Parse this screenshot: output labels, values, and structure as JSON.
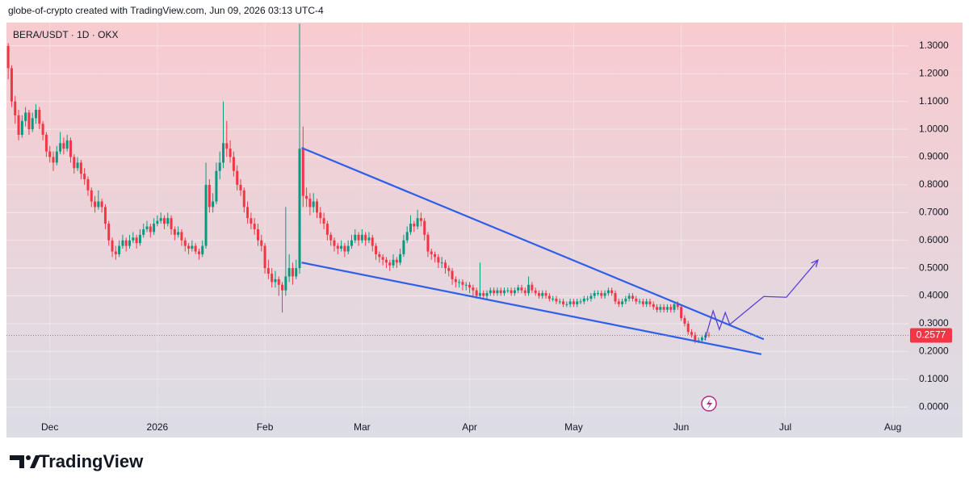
{
  "header": {
    "attribution": "globe-of-crypto created with TradingView.com, Jun 09, 2026 03:13 UTC-4"
  },
  "footer": {
    "brand": "TradingView"
  },
  "chart_data": {
    "type": "candlestick",
    "title": "BERA/USDT · 1D · OKX",
    "up_color": "#089981",
    "down_color": "#f23645",
    "xlim": [
      -12.5,
      247.5
    ],
    "xticks": [
      {
        "value": 0,
        "label": "Dec"
      },
      {
        "value": 31,
        "label": "2026"
      },
      {
        "value": 62,
        "label": "Feb"
      },
      {
        "value": 90,
        "label": "Mar"
      },
      {
        "value": 121,
        "label": "Apr"
      },
      {
        "value": 151,
        "label": "May"
      },
      {
        "value": 182,
        "label": "Jun"
      },
      {
        "value": 212,
        "label": "Jul"
      },
      {
        "value": 243,
        "label": "Aug"
      }
    ],
    "ylim": [
      -0.11,
      1.384
    ],
    "yticks": [
      {
        "value": 0,
        "label": "0.0000"
      },
      {
        "value": 0.1,
        "label": "0.1000"
      },
      {
        "value": 0.2,
        "label": "0.2000"
      },
      {
        "value": 0.3,
        "label": "0.3000"
      },
      {
        "value": 0.4,
        "label": "0.4000"
      },
      {
        "value": 0.5,
        "label": "0.5000"
      },
      {
        "value": 0.6,
        "label": "0.6000"
      },
      {
        "value": 0.7,
        "label": "0.7000"
      },
      {
        "value": 0.8,
        "label": "0.8000"
      },
      {
        "value": 0.9,
        "label": "0.9000"
      },
      {
        "value": 1,
        "label": "1.0000"
      },
      {
        "value": 1.1,
        "label": "1.1000"
      },
      {
        "value": 1.2,
        "label": "1.2000"
      },
      {
        "value": 1.3,
        "label": "1.3000"
      }
    ],
    "grid": true,
    "x": [
      -12,
      -11,
      -10,
      -9,
      -8,
      -7,
      -6,
      -5,
      -4,
      -3,
      -2,
      -1,
      0,
      1,
      2,
      3,
      4,
      5,
      6,
      7,
      8,
      9,
      10,
      11,
      12,
      13,
      14,
      15,
      16,
      17,
      18,
      19,
      20,
      21,
      22,
      23,
      24,
      25,
      26,
      27,
      28,
      29,
      30,
      31,
      32,
      33,
      34,
      35,
      36,
      37,
      38,
      39,
      40,
      41,
      42,
      43,
      44,
      45,
      46,
      47,
      48,
      49,
      50,
      51,
      52,
      53,
      54,
      55,
      56,
      57,
      58,
      59,
      60,
      61,
      62,
      63,
      64,
      65,
      66,
      67,
      68,
      69,
      70,
      71,
      72,
      73,
      74,
      75,
      76,
      77,
      78,
      79,
      80,
      81,
      82,
      83,
      84,
      85,
      86,
      87,
      88,
      89,
      90,
      91,
      92,
      93,
      94,
      95,
      96,
      97,
      98,
      99,
      100,
      101,
      102,
      103,
      104,
      105,
      106,
      107,
      108,
      109,
      110,
      111,
      112,
      113,
      114,
      115,
      116,
      117,
      118,
      119,
      120,
      121,
      122,
      123,
      124,
      125,
      126,
      127,
      128,
      129,
      130,
      131,
      132,
      133,
      134,
      135,
      136,
      137,
      138,
      139,
      140,
      141,
      142,
      143,
      144,
      145,
      146,
      147,
      148,
      149,
      150,
      151,
      152,
      153,
      154,
      155,
      156,
      157,
      158,
      159,
      160,
      161,
      162,
      163,
      164,
      165,
      166,
      167,
      168,
      169,
      170,
      171,
      172,
      173,
      174,
      175,
      176,
      177,
      178,
      179,
      180,
      181,
      182,
      183,
      184,
      185,
      186,
      187,
      188,
      189,
      190
    ],
    "candles": [
      [
        1.3,
        1.31,
        1.18,
        1.22
      ],
      [
        1.22,
        1.23,
        1.08,
        1.1
      ],
      [
        1.1,
        1.12,
        1.02,
        1.05
      ],
      [
        1.05,
        1.07,
        0.96,
        0.98
      ],
      [
        0.98,
        1.05,
        0.97,
        1.03
      ],
      [
        1.03,
        1.08,
        1.01,
        1.06
      ],
      [
        1.06,
        1.07,
        0.98,
        1.0
      ],
      [
        1.0,
        1.06,
        0.99,
        1.04
      ],
      [
        1.04,
        1.09,
        1.02,
        1.07
      ],
      [
        1.07,
        1.08,
        1.0,
        1.02
      ],
      [
        1.02,
        1.03,
        0.96,
        0.98
      ],
      [
        0.98,
        0.99,
        0.9,
        0.92
      ],
      [
        0.92,
        0.94,
        0.88,
        0.9
      ],
      [
        0.9,
        0.92,
        0.85,
        0.88
      ],
      [
        0.88,
        0.94,
        0.87,
        0.92
      ],
      [
        0.92,
        0.99,
        0.91,
        0.95
      ],
      [
        0.95,
        0.97,
        0.91,
        0.93
      ],
      [
        0.93,
        0.98,
        0.92,
        0.96
      ],
      [
        0.96,
        0.97,
        0.88,
        0.9
      ],
      [
        0.9,
        0.91,
        0.84,
        0.86
      ],
      [
        0.86,
        0.9,
        0.85,
        0.88
      ],
      [
        0.88,
        0.89,
        0.82,
        0.84
      ],
      [
        0.84,
        0.86,
        0.8,
        0.82
      ],
      [
        0.82,
        0.83,
        0.76,
        0.78
      ],
      [
        0.78,
        0.79,
        0.72,
        0.74
      ],
      [
        0.74,
        0.76,
        0.7,
        0.72
      ],
      [
        0.72,
        0.78,
        0.71,
        0.74
      ],
      [
        0.74,
        0.75,
        0.7,
        0.72
      ],
      [
        0.72,
        0.73,
        0.64,
        0.66
      ],
      [
        0.66,
        0.67,
        0.58,
        0.6
      ],
      [
        0.6,
        0.61,
        0.54,
        0.56
      ],
      [
        0.56,
        0.58,
        0.53,
        0.55
      ],
      [
        0.55,
        0.6,
        0.54,
        0.58
      ],
      [
        0.58,
        0.62,
        0.57,
        0.6
      ],
      [
        0.6,
        0.61,
        0.56,
        0.58
      ],
      [
        0.58,
        0.62,
        0.57,
        0.6
      ],
      [
        0.6,
        0.63,
        0.59,
        0.61
      ],
      [
        0.61,
        0.62,
        0.57,
        0.59
      ],
      [
        0.59,
        0.64,
        0.58,
        0.62
      ],
      [
        0.62,
        0.66,
        0.61,
        0.64
      ],
      [
        0.64,
        0.67,
        0.63,
        0.65
      ],
      [
        0.65,
        0.66,
        0.61,
        0.63
      ],
      [
        0.63,
        0.68,
        0.62,
        0.66
      ],
      [
        0.66,
        0.69,
        0.65,
        0.67
      ],
      [
        0.67,
        0.7,
        0.66,
        0.68
      ],
      [
        0.68,
        0.69,
        0.64,
        0.66
      ],
      [
        0.66,
        0.7,
        0.65,
        0.68
      ],
      [
        0.68,
        0.69,
        0.62,
        0.64
      ],
      [
        0.64,
        0.65,
        0.6,
        0.62
      ],
      [
        0.62,
        0.65,
        0.61,
        0.63
      ],
      [
        0.63,
        0.64,
        0.58,
        0.6
      ],
      [
        0.6,
        0.61,
        0.56,
        0.58
      ],
      [
        0.58,
        0.59,
        0.55,
        0.57
      ],
      [
        0.57,
        0.6,
        0.56,
        0.58
      ],
      [
        0.58,
        0.59,
        0.55,
        0.56
      ],
      [
        0.56,
        0.57,
        0.53,
        0.55
      ],
      [
        0.55,
        0.6,
        0.54,
        0.58
      ],
      [
        0.58,
        0.88,
        0.57,
        0.8
      ],
      [
        0.8,
        0.82,
        0.7,
        0.72
      ],
      [
        0.72,
        0.77,
        0.7,
        0.74
      ],
      [
        0.74,
        0.88,
        0.73,
        0.85
      ],
      [
        0.85,
        0.92,
        0.82,
        0.88
      ],
      [
        0.88,
        1.1,
        0.86,
        0.95
      ],
      [
        0.95,
        1.03,
        0.9,
        0.93
      ],
      [
        0.93,
        0.96,
        0.88,
        0.9
      ],
      [
        0.9,
        0.92,
        0.83,
        0.85
      ],
      [
        0.85,
        0.87,
        0.78,
        0.8
      ],
      [
        0.8,
        0.82,
        0.76,
        0.78
      ],
      [
        0.78,
        0.79,
        0.7,
        0.72
      ],
      [
        0.72,
        0.74,
        0.66,
        0.68
      ],
      [
        0.68,
        0.7,
        0.64,
        0.66
      ],
      [
        0.66,
        0.68,
        0.62,
        0.64
      ],
      [
        0.64,
        0.66,
        0.58,
        0.6
      ],
      [
        0.6,
        0.62,
        0.56,
        0.58
      ],
      [
        0.58,
        0.59,
        0.48,
        0.5
      ],
      [
        0.5,
        0.53,
        0.46,
        0.48
      ],
      [
        0.48,
        0.5,
        0.43,
        0.45
      ],
      [
        0.45,
        0.49,
        0.43,
        0.46
      ],
      [
        0.46,
        0.47,
        0.4,
        0.44
      ],
      [
        0.44,
        0.45,
        0.34,
        0.42
      ],
      [
        0.42,
        0.72,
        0.4,
        0.47
      ],
      [
        0.47,
        0.55,
        0.45,
        0.5
      ],
      [
        0.5,
        0.52,
        0.44,
        0.47
      ],
      [
        0.47,
        0.53,
        0.46,
        0.5
      ],
      [
        0.5,
        1.38,
        0.48,
        0.93
      ],
      [
        0.93,
        1.01,
        0.72,
        0.76
      ],
      [
        0.76,
        0.79,
        0.72,
        0.75
      ],
      [
        0.75,
        0.77,
        0.69,
        0.72
      ],
      [
        0.72,
        0.77,
        0.7,
        0.74
      ],
      [
        0.74,
        0.75,
        0.68,
        0.7
      ],
      [
        0.7,
        0.72,
        0.66,
        0.68
      ],
      [
        0.68,
        0.7,
        0.64,
        0.66
      ],
      [
        0.66,
        0.67,
        0.6,
        0.62
      ],
      [
        0.62,
        0.63,
        0.58,
        0.6
      ],
      [
        0.6,
        0.61,
        0.56,
        0.58
      ],
      [
        0.58,
        0.59,
        0.55,
        0.57
      ],
      [
        0.57,
        0.6,
        0.56,
        0.58
      ],
      [
        0.58,
        0.59,
        0.54,
        0.56
      ],
      [
        0.56,
        0.6,
        0.55,
        0.58
      ],
      [
        0.58,
        0.62,
        0.57,
        0.6
      ],
      [
        0.6,
        0.64,
        0.59,
        0.62
      ],
      [
        0.62,
        0.63,
        0.58,
        0.6
      ],
      [
        0.6,
        0.64,
        0.59,
        0.62
      ],
      [
        0.62,
        0.63,
        0.58,
        0.6
      ],
      [
        0.6,
        0.63,
        0.59,
        0.61
      ],
      [
        0.61,
        0.62,
        0.56,
        0.58
      ],
      [
        0.58,
        0.59,
        0.53,
        0.55
      ],
      [
        0.55,
        0.56,
        0.52,
        0.54
      ],
      [
        0.54,
        0.55,
        0.51,
        0.53
      ],
      [
        0.53,
        0.54,
        0.5,
        0.52
      ],
      [
        0.52,
        0.53,
        0.49,
        0.51
      ],
      [
        0.51,
        0.55,
        0.5,
        0.53
      ],
      [
        0.53,
        0.54,
        0.5,
        0.52
      ],
      [
        0.52,
        0.57,
        0.51,
        0.55
      ],
      [
        0.55,
        0.62,
        0.54,
        0.6
      ],
      [
        0.6,
        0.65,
        0.59,
        0.63
      ],
      [
        0.63,
        0.69,
        0.62,
        0.66
      ],
      [
        0.66,
        0.67,
        0.63,
        0.65
      ],
      [
        0.65,
        0.71,
        0.64,
        0.68
      ],
      [
        0.68,
        0.7,
        0.65,
        0.67
      ],
      [
        0.67,
        0.68,
        0.6,
        0.62
      ],
      [
        0.62,
        0.63,
        0.54,
        0.56
      ],
      [
        0.56,
        0.57,
        0.53,
        0.55
      ],
      [
        0.55,
        0.56,
        0.52,
        0.54
      ],
      [
        0.54,
        0.55,
        0.5,
        0.52
      ],
      [
        0.52,
        0.54,
        0.5,
        0.52
      ],
      [
        0.52,
        0.53,
        0.48,
        0.5
      ],
      [
        0.5,
        0.51,
        0.47,
        0.49
      ],
      [
        0.49,
        0.5,
        0.44,
        0.46
      ],
      [
        0.46,
        0.47,
        0.43,
        0.45
      ],
      [
        0.45,
        0.46,
        0.43,
        0.45
      ],
      [
        0.45,
        0.46,
        0.42,
        0.44
      ],
      [
        0.44,
        0.45,
        0.42,
        0.44
      ],
      [
        0.44,
        0.45,
        0.41,
        0.43
      ],
      [
        0.43,
        0.44,
        0.4,
        0.42
      ],
      [
        0.42,
        0.43,
        0.39,
        0.4
      ],
      [
        0.4,
        0.52,
        0.39,
        0.41
      ],
      [
        0.41,
        0.42,
        0.39,
        0.4
      ],
      [
        0.4,
        0.42,
        0.39,
        0.41
      ],
      [
        0.41,
        0.43,
        0.4,
        0.42
      ],
      [
        0.42,
        0.43,
        0.4,
        0.41
      ],
      [
        0.41,
        0.43,
        0.4,
        0.42
      ],
      [
        0.42,
        0.43,
        0.4,
        0.41
      ],
      [
        0.41,
        0.43,
        0.4,
        0.42
      ],
      [
        0.42,
        0.43,
        0.41,
        0.42
      ],
      [
        0.42,
        0.43,
        0.4,
        0.41
      ],
      [
        0.41,
        0.43,
        0.4,
        0.42
      ],
      [
        0.42,
        0.44,
        0.41,
        0.43
      ],
      [
        0.43,
        0.44,
        0.41,
        0.42
      ],
      [
        0.42,
        0.43,
        0.4,
        0.41
      ],
      [
        0.41,
        0.47,
        0.4,
        0.44
      ],
      [
        0.44,
        0.45,
        0.41,
        0.42
      ],
      [
        0.42,
        0.43,
        0.4,
        0.41
      ],
      [
        0.41,
        0.42,
        0.39,
        0.4
      ],
      [
        0.4,
        0.42,
        0.39,
        0.41
      ],
      [
        0.41,
        0.42,
        0.39,
        0.4
      ],
      [
        0.4,
        0.41,
        0.38,
        0.39
      ],
      [
        0.39,
        0.4,
        0.38,
        0.39
      ],
      [
        0.39,
        0.4,
        0.37,
        0.38
      ],
      [
        0.38,
        0.39,
        0.37,
        0.38
      ],
      [
        0.38,
        0.39,
        0.36,
        0.37
      ],
      [
        0.37,
        0.38,
        0.36,
        0.37
      ],
      [
        0.37,
        0.39,
        0.36,
        0.38
      ],
      [
        0.38,
        0.39,
        0.36,
        0.37
      ],
      [
        0.37,
        0.39,
        0.36,
        0.38
      ],
      [
        0.38,
        0.39,
        0.37,
        0.38
      ],
      [
        0.38,
        0.4,
        0.37,
        0.39
      ],
      [
        0.39,
        0.4,
        0.38,
        0.39
      ],
      [
        0.39,
        0.41,
        0.38,
        0.4
      ],
      [
        0.4,
        0.42,
        0.39,
        0.41
      ],
      [
        0.41,
        0.42,
        0.4,
        0.41
      ],
      [
        0.41,
        0.42,
        0.39,
        0.4
      ],
      [
        0.4,
        0.42,
        0.39,
        0.41
      ],
      [
        0.41,
        0.43,
        0.4,
        0.42
      ],
      [
        0.42,
        0.43,
        0.4,
        0.41
      ],
      [
        0.41,
        0.42,
        0.37,
        0.38
      ],
      [
        0.38,
        0.39,
        0.36,
        0.37
      ],
      [
        0.37,
        0.39,
        0.36,
        0.38
      ],
      [
        0.38,
        0.4,
        0.37,
        0.39
      ],
      [
        0.39,
        0.41,
        0.38,
        0.4
      ],
      [
        0.4,
        0.41,
        0.38,
        0.39
      ],
      [
        0.39,
        0.4,
        0.37,
        0.38
      ],
      [
        0.38,
        0.39,
        0.37,
        0.38
      ],
      [
        0.38,
        0.39,
        0.36,
        0.37
      ],
      [
        0.37,
        0.39,
        0.36,
        0.38
      ],
      [
        0.38,
        0.39,
        0.36,
        0.37
      ],
      [
        0.37,
        0.38,
        0.35,
        0.36
      ],
      [
        0.36,
        0.37,
        0.34,
        0.35
      ],
      [
        0.35,
        0.37,
        0.34,
        0.36
      ],
      [
        0.36,
        0.37,
        0.34,
        0.35
      ],
      [
        0.35,
        0.37,
        0.34,
        0.36
      ],
      [
        0.36,
        0.37,
        0.34,
        0.35
      ],
      [
        0.35,
        0.38,
        0.34,
        0.37
      ],
      [
        0.37,
        0.38,
        0.35,
        0.36
      ],
      [
        0.36,
        0.37,
        0.31,
        0.32
      ],
      [
        0.32,
        0.33,
        0.29,
        0.3
      ],
      [
        0.3,
        0.31,
        0.26,
        0.27
      ],
      [
        0.27,
        0.28,
        0.25,
        0.26
      ],
      [
        0.26,
        0.27,
        0.23,
        0.24
      ],
      [
        0.24,
        0.25,
        0.23,
        0.24
      ],
      [
        0.24,
        0.26,
        0.23,
        0.25
      ],
      [
        0.25,
        0.27,
        0.24,
        0.26
      ],
      [
        0.26,
        0.27,
        0.25,
        0.2577
      ]
    ],
    "annotation_lines": [
      {
        "color": "#2f5fe8",
        "x": [
          72.6,
          205.8
        ],
        "y": [
          0.933,
          0.244
        ]
      },
      {
        "color": "#2f5fe8",
        "x": [
          72.6,
          205.1
        ],
        "y": [
          0.52,
          0.19
        ]
      },
      {
        "color": "#5a3fd6",
        "arrow": true,
        "x": [
          188.8,
          191.2,
          193,
          194.7,
          196,
          205.8,
          212.3,
          221.4
        ],
        "y": [
          0.241,
          0.346,
          0.279,
          0.34,
          0.297,
          0.398,
          0.395,
          0.529
        ]
      }
    ]
  }
}
